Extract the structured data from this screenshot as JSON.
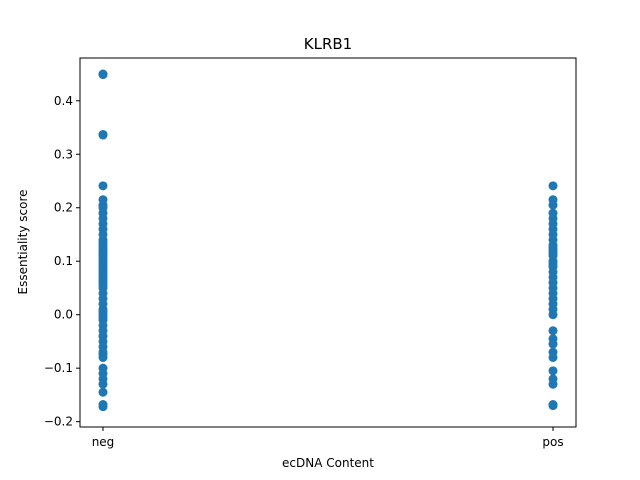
{
  "chart_data": {
    "type": "scatter",
    "title": "KLRB1",
    "xlabel": "ecDNA Content",
    "ylabel": "Essentiality score",
    "categories": [
      "neg",
      "pos"
    ],
    "ylim": [
      -0.21,
      0.48
    ],
    "yticks": [
      -0.2,
      -0.1,
      0.0,
      0.1,
      0.2,
      0.3,
      0.4
    ],
    "ytick_labels": [
      "−0.2",
      "−0.1",
      "0.0",
      "0.1",
      "0.2",
      "0.3",
      "0.4"
    ],
    "grid": false,
    "marker_color": "#1f77b4",
    "series": [
      {
        "category": "neg",
        "values": [
          0.45,
          0.449,
          0.337,
          0.336,
          0.241,
          0.215,
          0.205,
          0.2,
          0.19,
          0.18,
          0.17,
          0.16,
          0.15,
          0.14,
          0.135,
          0.13,
          0.125,
          0.12,
          0.115,
          0.11,
          0.105,
          0.1,
          0.095,
          0.09,
          0.085,
          0.08,
          0.075,
          0.07,
          0.065,
          0.06,
          0.055,
          0.05,
          0.04,
          0.03,
          0.02,
          0.01,
          0.005,
          0.0,
          -0.005,
          -0.01,
          -0.02,
          -0.03,
          -0.04,
          -0.05,
          -0.06,
          -0.07,
          -0.075,
          -0.08,
          -0.1,
          -0.11,
          -0.12,
          -0.13,
          -0.145,
          -0.168,
          -0.172
        ]
      },
      {
        "category": "pos",
        "values": [
          0.241,
          0.215,
          0.205,
          0.19,
          0.18,
          0.17,
          0.16,
          0.15,
          0.14,
          0.13,
          0.125,
          0.12,
          0.115,
          0.11,
          0.1,
          0.095,
          0.09,
          0.08,
          0.07,
          0.06,
          0.05,
          0.04,
          0.03,
          0.02,
          0.01,
          0.0,
          -0.03,
          -0.045,
          -0.055,
          -0.07,
          -0.08,
          -0.105,
          -0.12,
          -0.13,
          -0.168,
          -0.17
        ]
      }
    ]
  }
}
